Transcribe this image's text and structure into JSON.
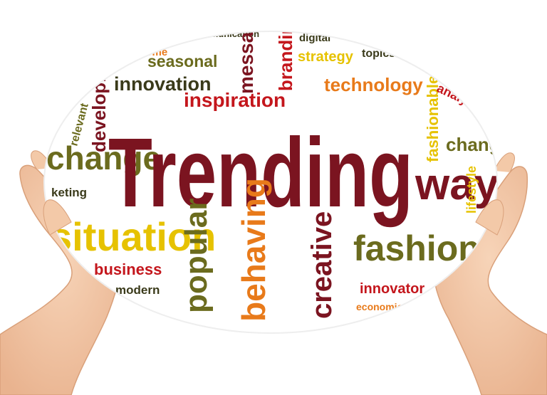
{
  "image": {
    "subject": "hands-holding-word-cloud-sphere"
  },
  "colors": {
    "dark_red": "#7b1420",
    "red": "#c4161c",
    "orange": "#e87a1a",
    "yellow": "#e6c200",
    "olive": "#6b6b1e",
    "dark": "#3a3a1a",
    "skin": "#f4c8a6"
  },
  "words": {
    "main": "Trending",
    "communication": "communication",
    "digital": "digital",
    "seasonal": "seasonal",
    "message": "message",
    "branding": "branding",
    "strategy": "strategy",
    "topics": "topics",
    "innovation": "innovation",
    "development": "development",
    "technology": "technology",
    "inspiration": "inspiration",
    "fashionable": "fashionable",
    "analysis": "analysis",
    "relevant": "relevant",
    "change": "change",
    "changing": "changing",
    "marketing": "keting",
    "way": "way",
    "lifestyle": "lifestyle",
    "situation": "situation",
    "popular": "popular",
    "behaving": "behaving",
    "creative": "creative",
    "fashion": "fashion",
    "business": "business",
    "modern": "modern",
    "innovator": "innovator",
    "economic": "economic",
    "some": "some"
  }
}
